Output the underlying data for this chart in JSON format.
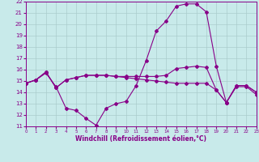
{
  "xlabel": "Windchill (Refroidissement éolien,°C)",
  "bg_color": "#c8eaea",
  "line_color": "#880088",
  "grid_color": "#aacccc",
  "ylim": [
    11,
    22
  ],
  "xlim": [
    0,
    23
  ],
  "yticks": [
    11,
    12,
    13,
    14,
    15,
    16,
    17,
    18,
    19,
    20,
    21,
    22
  ],
  "xticks": [
    0,
    1,
    2,
    3,
    4,
    5,
    6,
    7,
    8,
    9,
    10,
    11,
    12,
    13,
    14,
    15,
    16,
    17,
    18,
    19,
    20,
    21,
    22,
    23
  ],
  "line1_x": [
    0,
    1,
    2,
    3,
    4,
    5,
    6,
    7,
    8,
    9,
    10,
    11,
    12,
    13,
    14,
    15,
    16,
    17,
    18,
    19,
    20,
    21,
    22,
    23
  ],
  "line1_y": [
    14.8,
    15.1,
    15.7,
    14.5,
    12.6,
    12.4,
    11.7,
    11.1,
    12.6,
    13.0,
    13.2,
    14.6,
    16.8,
    19.4,
    20.3,
    21.6,
    21.8,
    21.8,
    21.1,
    16.3,
    13.1,
    14.5,
    14.5,
    13.8
  ],
  "line2_x": [
    0,
    1,
    2,
    3,
    4,
    5,
    6,
    7,
    8,
    9,
    10,
    11,
    12,
    13,
    14,
    15,
    16,
    17,
    18,
    19,
    20,
    21,
    22,
    23
  ],
  "line2_y": [
    14.8,
    15.1,
    15.8,
    14.4,
    15.1,
    15.3,
    15.5,
    15.5,
    15.5,
    15.4,
    15.4,
    15.4,
    15.4,
    15.4,
    15.5,
    16.1,
    16.2,
    16.3,
    16.2,
    14.2,
    13.1,
    14.6,
    14.6,
    14.0
  ],
  "line3_x": [
    0,
    1,
    2,
    3,
    4,
    5,
    6,
    7,
    8,
    9,
    10,
    11,
    12,
    13,
    14,
    15,
    16,
    17,
    18,
    19,
    20,
    21,
    22,
    23
  ],
  "line3_y": [
    14.8,
    15.1,
    15.8,
    14.4,
    15.1,
    15.3,
    15.5,
    15.5,
    15.5,
    15.4,
    15.3,
    15.2,
    15.1,
    15.0,
    14.9,
    14.8,
    14.8,
    14.8,
    14.8,
    14.2,
    13.1,
    14.6,
    14.6,
    14.0
  ],
  "marker": "D",
  "markersize": 2.0,
  "linewidth": 0.8
}
